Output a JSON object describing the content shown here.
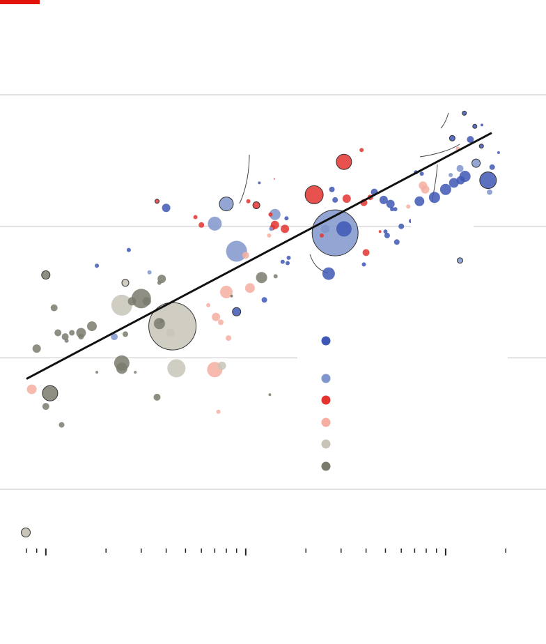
{
  "brand_accent": "#e3120b",
  "colors": {
    "dark_blue": "#3f57b5",
    "light_blue": "#7f95cb",
    "red": "#e3342f",
    "pink": "#f5aea1",
    "beige": "#c8c5b8",
    "grey": "#7a7a6d",
    "trend": "#111111",
    "grid": "#d9d9d9"
  },
  "legend": {
    "items": [
      {
        "key": "dark_blue",
        "color": "#3f57b5"
      },
      {
        "key": "light_blue",
        "color": "#7f95cb"
      },
      {
        "key": "red",
        "color": "#e3342f"
      },
      {
        "key": "pink",
        "color": "#f5aea1"
      },
      {
        "key": "beige",
        "color": "#c8c5b8"
      },
      {
        "key": "grey",
        "color": "#7a7a6d"
      }
    ],
    "size_key_color": "#c8c5b8"
  },
  "chart_data": {
    "type": "scatter",
    "title": "",
    "xlabel": "",
    "ylabel": "",
    "x_scale": "log",
    "xlim": [
      0.8,
      200
    ],
    "ylim": [
      0,
      3
    ],
    "grid": true,
    "trend_line": {
      "x": [
        0.8,
        170
      ],
      "y": [
        0.84,
        2.71
      ]
    },
    "x_major_ticks": [
      1,
      10,
      100
    ],
    "points": [
      {
        "x": 124,
        "y": 2.86,
        "r": 3,
        "c": "dark_blue",
        "o": 1
      },
      {
        "x": 140,
        "y": 2.76,
        "r": 3,
        "c": "dark_blue",
        "o": 1
      },
      {
        "x": 108,
        "y": 2.67,
        "r": 4,
        "c": "dark_blue",
        "o": 1
      },
      {
        "x": 115,
        "y": 2.59,
        "r": 3,
        "c": "pink"
      },
      {
        "x": 133,
        "y": 2.66,
        "r": 5,
        "c": "dark_blue"
      },
      {
        "x": 152,
        "y": 2.77,
        "r": 2,
        "c": "dark_blue"
      },
      {
        "x": 151,
        "y": 2.61,
        "r": 3,
        "c": "dark_blue",
        "o": 1
      },
      {
        "x": 142,
        "y": 2.48,
        "r": 6,
        "c": "light_blue",
        "o": 1
      },
      {
        "x": 118,
        "y": 2.44,
        "r": 5,
        "c": "light_blue"
      },
      {
        "x": 125,
        "y": 2.38,
        "r": 8,
        "c": "dark_blue"
      },
      {
        "x": 119,
        "y": 2.35,
        "r": 6,
        "c": "dark_blue"
      },
      {
        "x": 110,
        "y": 2.33,
        "r": 7,
        "c": "dark_blue"
      },
      {
        "x": 100,
        "y": 2.28,
        "r": 8,
        "c": "dark_blue"
      },
      {
        "x": 163,
        "y": 2.35,
        "r": 12,
        "c": "dark_blue",
        "o": 1
      },
      {
        "x": 171,
        "y": 2.45,
        "r": 4,
        "c": "dark_blue"
      },
      {
        "x": 184,
        "y": 2.56,
        "r": 2,
        "c": "dark_blue"
      },
      {
        "x": 166,
        "y": 2.26,
        "r": 4,
        "c": "light_blue"
      },
      {
        "x": 106,
        "y": 2.39,
        "r": 3,
        "c": "light_blue"
      },
      {
        "x": 88,
        "y": 2.22,
        "r": 8,
        "c": "dark_blue"
      },
      {
        "x": 79,
        "y": 2.28,
        "r": 6,
        "c": "pink"
      },
      {
        "x": 77,
        "y": 2.31,
        "r": 6,
        "c": "pink"
      },
      {
        "x": 74,
        "y": 2.19,
        "r": 7,
        "c": "dark_blue"
      },
      {
        "x": 75,
        "y": 2.06,
        "r": 11,
        "c": "light_blue"
      },
      {
        "x": 75,
        "y": 2.01,
        "r": 8,
        "c": "light_blue"
      },
      {
        "x": 71,
        "y": 2.41,
        "r": 3,
        "c": "dark_blue"
      },
      {
        "x": 76,
        "y": 2.4,
        "r": 3,
        "c": "dark_blue"
      },
      {
        "x": 65,
        "y": 2.15,
        "r": 3,
        "c": "pink"
      },
      {
        "x": 67,
        "y": 2.04,
        "r": 3,
        "c": "dark_blue"
      },
      {
        "x": 78,
        "y": 1.95,
        "r": 2,
        "c": "dark_blue"
      },
      {
        "x": 60,
        "y": 2.0,
        "r": 4,
        "c": "dark_blue"
      },
      {
        "x": 53,
        "y": 2.17,
        "r": 6,
        "c": "dark_blue"
      },
      {
        "x": 56,
        "y": 2.13,
        "r": 3,
        "c": "dark_blue"
      },
      {
        "x": 54,
        "y": 2.13,
        "r": 3,
        "c": "dark_blue"
      },
      {
        "x": 49,
        "y": 2.2,
        "r": 6,
        "c": "dark_blue"
      },
      {
        "x": 44,
        "y": 2.26,
        "r": 5,
        "c": "dark_blue"
      },
      {
        "x": 42,
        "y": 2.22,
        "r": 4,
        "c": "red"
      },
      {
        "x": 51,
        "y": 1.93,
        "r": 4,
        "c": "dark_blue"
      },
      {
        "x": 50,
        "y": 1.96,
        "r": 3,
        "c": "dark_blue"
      },
      {
        "x": 57,
        "y": 1.88,
        "r": 4,
        "c": "dark_blue"
      },
      {
        "x": 47,
        "y": 1.96,
        "r": 2,
        "c": "red"
      },
      {
        "x": 38,
        "y": 2.58,
        "r": 3,
        "c": "red"
      },
      {
        "x": 31,
        "y": 2.49,
        "r": 11,
        "c": "red",
        "o": 1
      },
      {
        "x": 22,
        "y": 2.24,
        "r": 13,
        "c": "red",
        "o": 1
      },
      {
        "x": 27,
        "y": 2.28,
        "r": 4,
        "c": "dark_blue"
      },
      {
        "x": 28,
        "y": 2.2,
        "r": 4,
        "c": "dark_blue"
      },
      {
        "x": 32,
        "y": 2.21,
        "r": 6,
        "c": "red"
      },
      {
        "x": 39,
        "y": 2.18,
        "r": 5,
        "c": "red"
      },
      {
        "x": 40,
        "y": 1.8,
        "r": 5,
        "c": "red"
      },
      {
        "x": 39,
        "y": 1.71,
        "r": 3,
        "c": "dark_blue"
      },
      {
        "x": 28,
        "y": 1.95,
        "r": 33,
        "c": "light_blue",
        "o": 1
      },
      {
        "x": 31,
        "y": 1.98,
        "r": 11,
        "c": "dark_blue"
      },
      {
        "x": 25,
        "y": 1.98,
        "r": 6,
        "c": "light_blue"
      },
      {
        "x": 24,
        "y": 1.93,
        "r": 3,
        "c": "red"
      },
      {
        "x": 26,
        "y": 1.64,
        "r": 9,
        "c": "dark_blue"
      },
      {
        "x": 16.0,
        "y": 2.06,
        "r": 3,
        "c": "dark_blue"
      },
      {
        "x": 14.0,
        "y": 2.09,
        "r": 8,
        "c": "light_blue"
      },
      {
        "x": 15.7,
        "y": 1.98,
        "r": 6,
        "c": "red"
      },
      {
        "x": 14.0,
        "y": 2.01,
        "r": 6,
        "c": "red"
      },
      {
        "x": 13.6,
        "y": 1.99,
        "r": 4,
        "c": "red"
      },
      {
        "x": 13.1,
        "y": 1.93,
        "r": 3,
        "c": "pink"
      },
      {
        "x": 13.3,
        "y": 2.09,
        "r": 3,
        "c": "red"
      },
      {
        "x": 11.3,
        "y": 2.16,
        "r": 5,
        "c": "red",
        "o": 1
      },
      {
        "x": 10.3,
        "y": 2.19,
        "r": 3,
        "c": "red"
      },
      {
        "x": 11.7,
        "y": 2.33,
        "r": 2,
        "c": "dark_blue"
      },
      {
        "x": 13.9,
        "y": 2.36,
        "r": 1,
        "c": "red"
      },
      {
        "x": 8.0,
        "y": 2.17,
        "r": 10,
        "c": "light_blue",
        "o": 1
      },
      {
        "x": 7.0,
        "y": 2.02,
        "r": 10,
        "c": "light_blue"
      },
      {
        "x": 9.0,
        "y": 1.81,
        "r": 15,
        "c": "light_blue"
      },
      {
        "x": 10.0,
        "y": 1.78,
        "r": 5,
        "c": "pink"
      },
      {
        "x": 6.0,
        "y": 2.01,
        "r": 4,
        "c": "red"
      },
      {
        "x": 5.6,
        "y": 2.07,
        "r": 3,
        "c": "red"
      },
      {
        "x": 4.0,
        "y": 2.14,
        "r": 6,
        "c": "dark_blue"
      },
      {
        "x": 3.6,
        "y": 2.19,
        "r": 3,
        "c": "red",
        "o": 1
      },
      {
        "x": 13.4,
        "y": 1.98,
        "r": 3,
        "c": "light_blue"
      },
      {
        "x": 15.3,
        "y": 1.73,
        "r": 3,
        "c": "dark_blue"
      },
      {
        "x": 16.2,
        "y": 1.72,
        "r": 3,
        "c": "dark_blue"
      },
      {
        "x": 16.4,
        "y": 1.76,
        "r": 3,
        "c": "dark_blue"
      },
      {
        "x": 14.1,
        "y": 1.62,
        "r": 3,
        "c": "grey"
      },
      {
        "x": 12.0,
        "y": 1.61,
        "r": 8,
        "c": "grey"
      },
      {
        "x": 10.5,
        "y": 1.53,
        "r": 7,
        "c": "pink"
      },
      {
        "x": 8.0,
        "y": 1.5,
        "r": 9,
        "c": "pink"
      },
      {
        "x": 12.4,
        "y": 1.44,
        "r": 4,
        "c": "dark_blue"
      },
      {
        "x": 8.5,
        "y": 1.47,
        "r": 2,
        "c": "grey"
      },
      {
        "x": 9.0,
        "y": 1.35,
        "r": 6,
        "c": "dark_blue",
        "o": 1
      },
      {
        "x": 2.6,
        "y": 1.82,
        "r": 3,
        "c": "dark_blue"
      },
      {
        "x": 1.8,
        "y": 1.7,
        "r": 3,
        "c": "dark_blue"
      },
      {
        "x": 2.5,
        "y": 1.57,
        "r": 5,
        "c": "beige",
        "o": 1
      },
      {
        "x": 3.3,
        "y": 1.65,
        "r": 3,
        "c": "light_blue"
      },
      {
        "x": 3.8,
        "y": 1.6,
        "r": 6,
        "c": "grey"
      },
      {
        "x": 3.7,
        "y": 1.57,
        "r": 3,
        "c": "grey"
      },
      {
        "x": 1.0,
        "y": 1.63,
        "r": 6,
        "c": "grey",
        "o": 1
      },
      {
        "x": 3.0,
        "y": 1.45,
        "r": 14,
        "c": "grey"
      },
      {
        "x": 2.7,
        "y": 1.43,
        "r": 6,
        "c": "grey"
      },
      {
        "x": 3.2,
        "y": 1.43,
        "r": 6,
        "c": "grey"
      },
      {
        "x": 2.4,
        "y": 1.4,
        "r": 15,
        "c": "beige"
      },
      {
        "x": 1.1,
        "y": 1.38,
        "r": 5,
        "c": "grey"
      },
      {
        "x": 6.5,
        "y": 1.4,
        "r": 3,
        "c": "pink"
      },
      {
        "x": 7.1,
        "y": 1.31,
        "r": 6,
        "c": "pink"
      },
      {
        "x": 7.5,
        "y": 1.27,
        "r": 4,
        "c": "pink"
      },
      {
        "x": 4.3,
        "y": 1.24,
        "r": 34,
        "c": "beige",
        "o": 1
      },
      {
        "x": 4.2,
        "y": 1.19,
        "r": 6,
        "c": "beige"
      },
      {
        "x": 3.7,
        "y": 1.26,
        "r": 8,
        "c": "grey"
      },
      {
        "x": 3.8,
        "y": 1.28,
        "r": 3,
        "c": "grey"
      },
      {
        "x": 8.2,
        "y": 1.15,
        "r": 4,
        "c": "pink"
      },
      {
        "x": 2.2,
        "y": 1.16,
        "r": 5,
        "c": "light_blue"
      },
      {
        "x": 2.5,
        "y": 1.18,
        "r": 4,
        "c": "grey"
      },
      {
        "x": 1.7,
        "y": 1.24,
        "r": 7,
        "c": "grey"
      },
      {
        "x": 1.5,
        "y": 1.19,
        "r": 7,
        "c": "grey"
      },
      {
        "x": 1.5,
        "y": 1.16,
        "r": 4,
        "c": "grey"
      },
      {
        "x": 1.35,
        "y": 1.19,
        "r": 4,
        "c": "grey"
      },
      {
        "x": 1.25,
        "y": 1.16,
        "r": 5,
        "c": "grey"
      },
      {
        "x": 1.15,
        "y": 1.19,
        "r": 5,
        "c": "grey"
      },
      {
        "x": 1.27,
        "y": 1.13,
        "r": 3,
        "c": "grey"
      },
      {
        "x": 0.9,
        "y": 1.07,
        "r": 6,
        "c": "grey"
      },
      {
        "x": 2.4,
        "y": 0.96,
        "r": 11,
        "c": "grey"
      },
      {
        "x": 2.4,
        "y": 0.92,
        "r": 8,
        "c": "grey"
      },
      {
        "x": 2.8,
        "y": 0.89,
        "r": 2,
        "c": "grey"
      },
      {
        "x": 4.5,
        "y": 0.92,
        "r": 13,
        "c": "beige"
      },
      {
        "x": 7.0,
        "y": 0.91,
        "r": 11,
        "c": "pink"
      },
      {
        "x": 7.6,
        "y": 0.94,
        "r": 6,
        "c": "beige"
      },
      {
        "x": 1.8,
        "y": 0.89,
        "r": 2,
        "c": "grey"
      },
      {
        "x": 0.85,
        "y": 0.76,
        "r": 7,
        "c": "pink"
      },
      {
        "x": 1.05,
        "y": 0.73,
        "r": 11,
        "c": "grey",
        "o": 1
      },
      {
        "x": 1.0,
        "y": 0.63,
        "r": 5,
        "c": "grey"
      },
      {
        "x": 3.6,
        "y": 0.7,
        "r": 5,
        "c": "grey"
      },
      {
        "x": 13.2,
        "y": 0.72,
        "r": 2,
        "c": "grey"
      },
      {
        "x": 7.3,
        "y": 0.59,
        "r": 3,
        "c": "pink"
      },
      {
        "x": 1.2,
        "y": 0.49,
        "r": 4,
        "c": "grey"
      },
      {
        "x": 118,
        "y": 1.74,
        "r": 4,
        "c": "light_blue",
        "o": 1
      }
    ]
  }
}
